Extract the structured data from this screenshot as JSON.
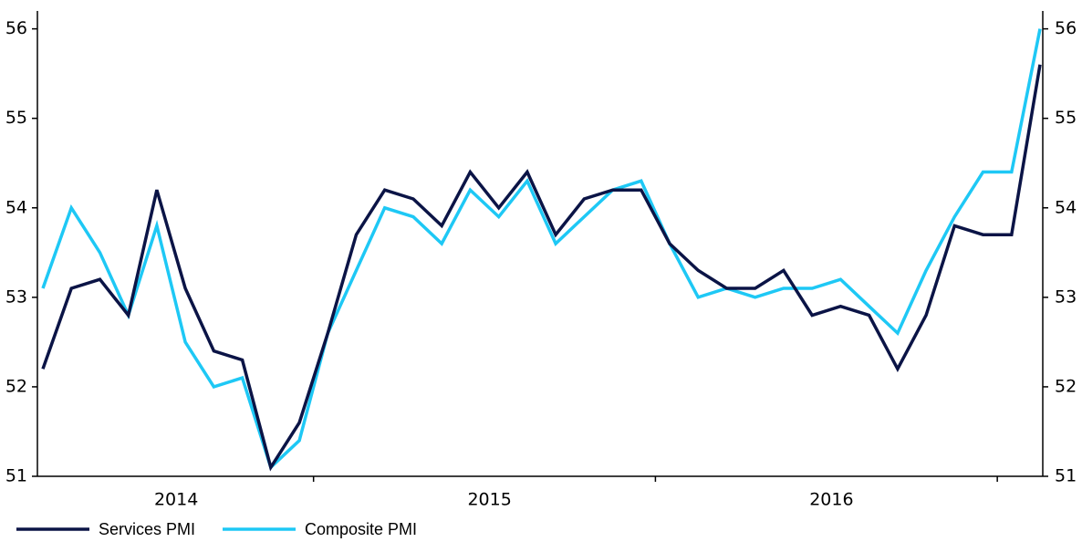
{
  "chart_data": {
    "type": "line",
    "categories": [
      null,
      null,
      null,
      null,
      null,
      "2014",
      null,
      null,
      null,
      null,
      null,
      null,
      null,
      null,
      null,
      null,
      "2015",
      null,
      null,
      null,
      null,
      null,
      null,
      null,
      null,
      null,
      null,
      null,
      "2016",
      null,
      null,
      null,
      null,
      null,
      null,
      null
    ],
    "series": [
      {
        "name": "Services PMI",
        "color": "#0b1446",
        "values": [
          52.2,
          53.1,
          53.2,
          52.8,
          54.2,
          53.1,
          52.4,
          52.3,
          51.1,
          51.6,
          52.6,
          53.7,
          54.2,
          54.1,
          53.8,
          54.4,
          54.0,
          54.4,
          53.7,
          54.1,
          54.2,
          54.2,
          53.6,
          53.3,
          53.1,
          53.1,
          53.3,
          52.8,
          52.9,
          52.8,
          52.2,
          52.8,
          53.8,
          53.7,
          53.7,
          55.6
        ]
      },
      {
        "name": "Composite PMI",
        "color": "#1ec8f5",
        "values": [
          53.1,
          54.0,
          53.5,
          52.8,
          53.8,
          52.5,
          52.0,
          52.1,
          51.1,
          51.4,
          52.6,
          53.3,
          54.0,
          53.9,
          53.6,
          54.2,
          53.9,
          54.3,
          53.6,
          53.9,
          54.2,
          54.3,
          53.6,
          53.0,
          53.1,
          53.0,
          53.1,
          53.1,
          53.2,
          52.9,
          52.6,
          53.3,
          53.9,
          54.4,
          54.4,
          56.0
        ]
      }
    ],
    "ylim": [
      51,
      56.2
    ],
    "yticks": [
      51,
      52,
      53,
      54,
      55,
      56
    ],
    "y2lim": [
      51,
      56.2
    ],
    "y2ticks": [
      51,
      52,
      53,
      54,
      55,
      56
    ],
    "grid": false,
    "legend": "bottom-left"
  }
}
